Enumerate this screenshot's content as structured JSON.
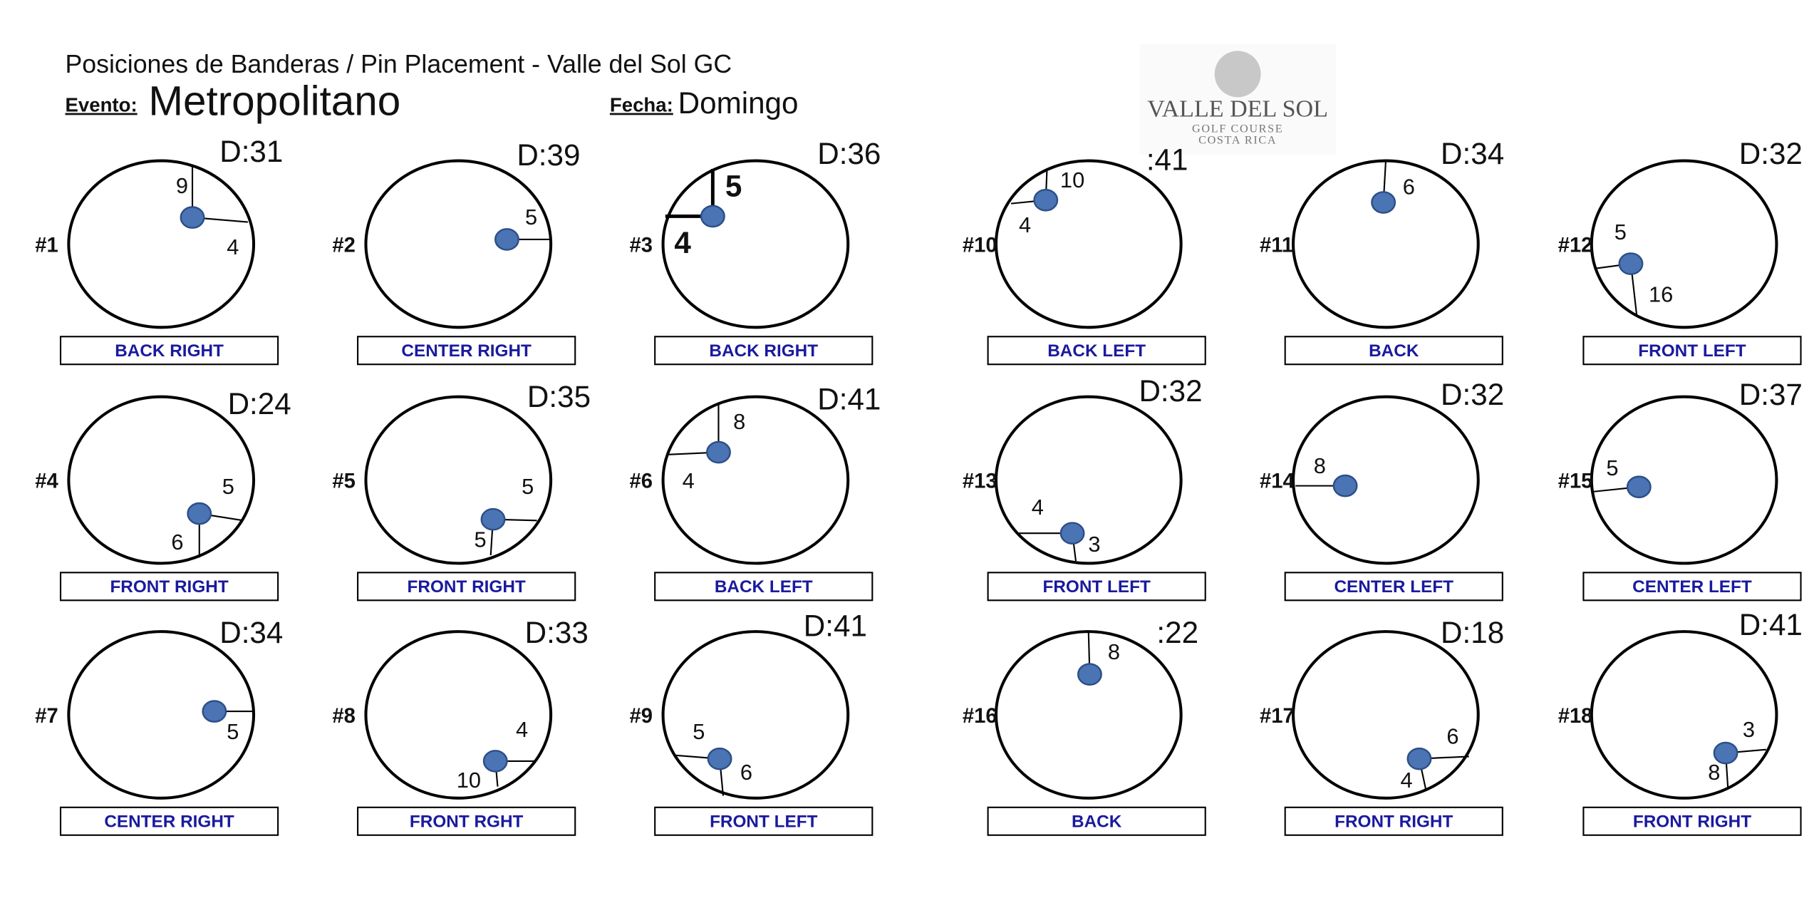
{
  "header": {
    "title": "Posiciones de Banderas / Pin Placement - Valle del Sol GC",
    "event_label": "Evento:",
    "event": "Metropolitano",
    "date_label": "Fecha:",
    "date": "Domingo"
  },
  "logo": {
    "name": "VALLE DEL SOL",
    "line1": "GOLF COURSE",
    "line2": "COSTA RICA"
  },
  "holes": [
    {
      "hole": "#1",
      "depth": "D:31",
      "measurements": [
        "9",
        "4"
      ],
      "position": "BACK RIGHT"
    },
    {
      "hole": "#2",
      "depth": "D:39",
      "measurements": [
        "5"
      ],
      "position": "CENTER RIGHT"
    },
    {
      "hole": "#3",
      "depth": "D:36",
      "measurements": [
        "5",
        "4"
      ],
      "position": "BACK RIGHT"
    },
    {
      "hole": "#10",
      "depth": ":41",
      "measurements": [
        "10",
        "4"
      ],
      "position": "BACK LEFT"
    },
    {
      "hole": "#11",
      "depth": "D:34",
      "measurements": [
        "6"
      ],
      "position": "BACK"
    },
    {
      "hole": "#12",
      "depth": "D:32",
      "measurements": [
        "5",
        "16"
      ],
      "position": "FRONT LEFT"
    },
    {
      "hole": "#4",
      "depth": "D:24",
      "measurements": [
        "5",
        "6"
      ],
      "position": "FRONT RIGHT"
    },
    {
      "hole": "#5",
      "depth": "D:35",
      "measurements": [
        "5",
        "5"
      ],
      "position": "FRONT RIGHT"
    },
    {
      "hole": "#6",
      "depth": "D:41",
      "measurements": [
        "8",
        "4"
      ],
      "position": "BACK LEFT"
    },
    {
      "hole": "#13",
      "depth": "D:32",
      "measurements": [
        "4",
        "3"
      ],
      "position": "FRONT LEFT"
    },
    {
      "hole": "#14",
      "depth": "D:32",
      "measurements": [
        "8"
      ],
      "position": "CENTER LEFT"
    },
    {
      "hole": "#15",
      "depth": "D:37",
      "measurements": [
        "5"
      ],
      "position": "CENTER LEFT"
    },
    {
      "hole": "#7",
      "depth": "D:34",
      "measurements": [
        "5"
      ],
      "position": "CENTER RIGHT"
    },
    {
      "hole": "#8",
      "depth": "D:33",
      "measurements": [
        "4",
        "10"
      ],
      "position": "FRONT RGHT"
    },
    {
      "hole": "#9",
      "depth": "D:41",
      "measurements": [
        "5",
        "6"
      ],
      "position": "FRONT LEFT"
    },
    {
      "hole": "#16",
      "depth": ":22",
      "measurements": [
        "8"
      ],
      "position": "BACK"
    },
    {
      "hole": "#17",
      "depth": "D:18",
      "measurements": [
        "6",
        "4"
      ],
      "position": "FRONT RIGHT"
    },
    {
      "hole": "#18",
      "depth": "D:41",
      "measurements": [
        "3",
        "8"
      ],
      "position": "FRONT RIGHT"
    }
  ]
}
